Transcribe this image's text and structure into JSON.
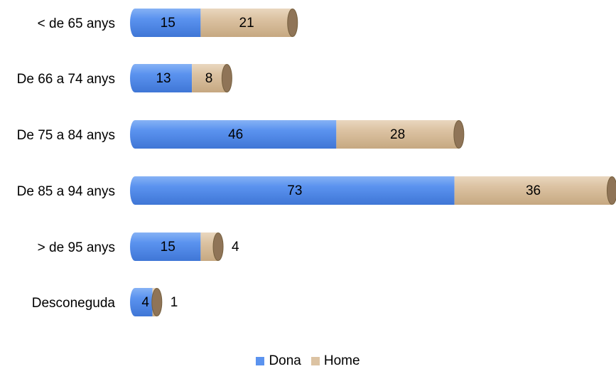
{
  "chart_data": {
    "type": "bar",
    "orientation": "horizontal",
    "stacked": true,
    "categories": [
      "< de 65 anys",
      "De 66 a 74 anys",
      "De 75 a 84 anys",
      "De 85 a 94 anys",
      "> de 95 anys",
      "Desconeguda"
    ],
    "series": [
      {
        "name": "Dona",
        "values": [
          15,
          13,
          46,
          73,
          15,
          4
        ],
        "color": "#5b93ef"
      },
      {
        "name": "Home",
        "values": [
          21,
          8,
          28,
          36,
          4,
          1
        ],
        "color": "#dcc3a3"
      }
    ],
    "xlim": [
      0,
      110
    ],
    "grid": false,
    "legend_position": "bottom",
    "style": "3d-cylinder"
  }
}
